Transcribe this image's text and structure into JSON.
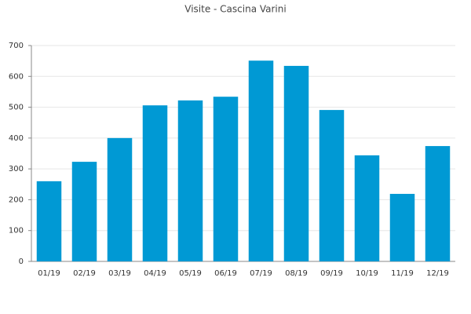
{
  "chart_data": {
    "type": "bar",
    "title": "Visite - Cascina Varini",
    "categories": [
      "01/19",
      "02/19",
      "03/19",
      "04/19",
      "05/19",
      "06/19",
      "07/19",
      "08/19",
      "09/19",
      "10/19",
      "11/19",
      "12/19"
    ],
    "values": [
      260,
      323,
      400,
      506,
      522,
      534,
      651,
      634,
      491,
      344,
      219,
      374
    ],
    "color": "#0099d4",
    "ylim": [
      0,
      700
    ],
    "yticks": [
      0,
      100,
      200,
      300,
      400,
      500,
      600,
      700
    ],
    "grid": true
  }
}
